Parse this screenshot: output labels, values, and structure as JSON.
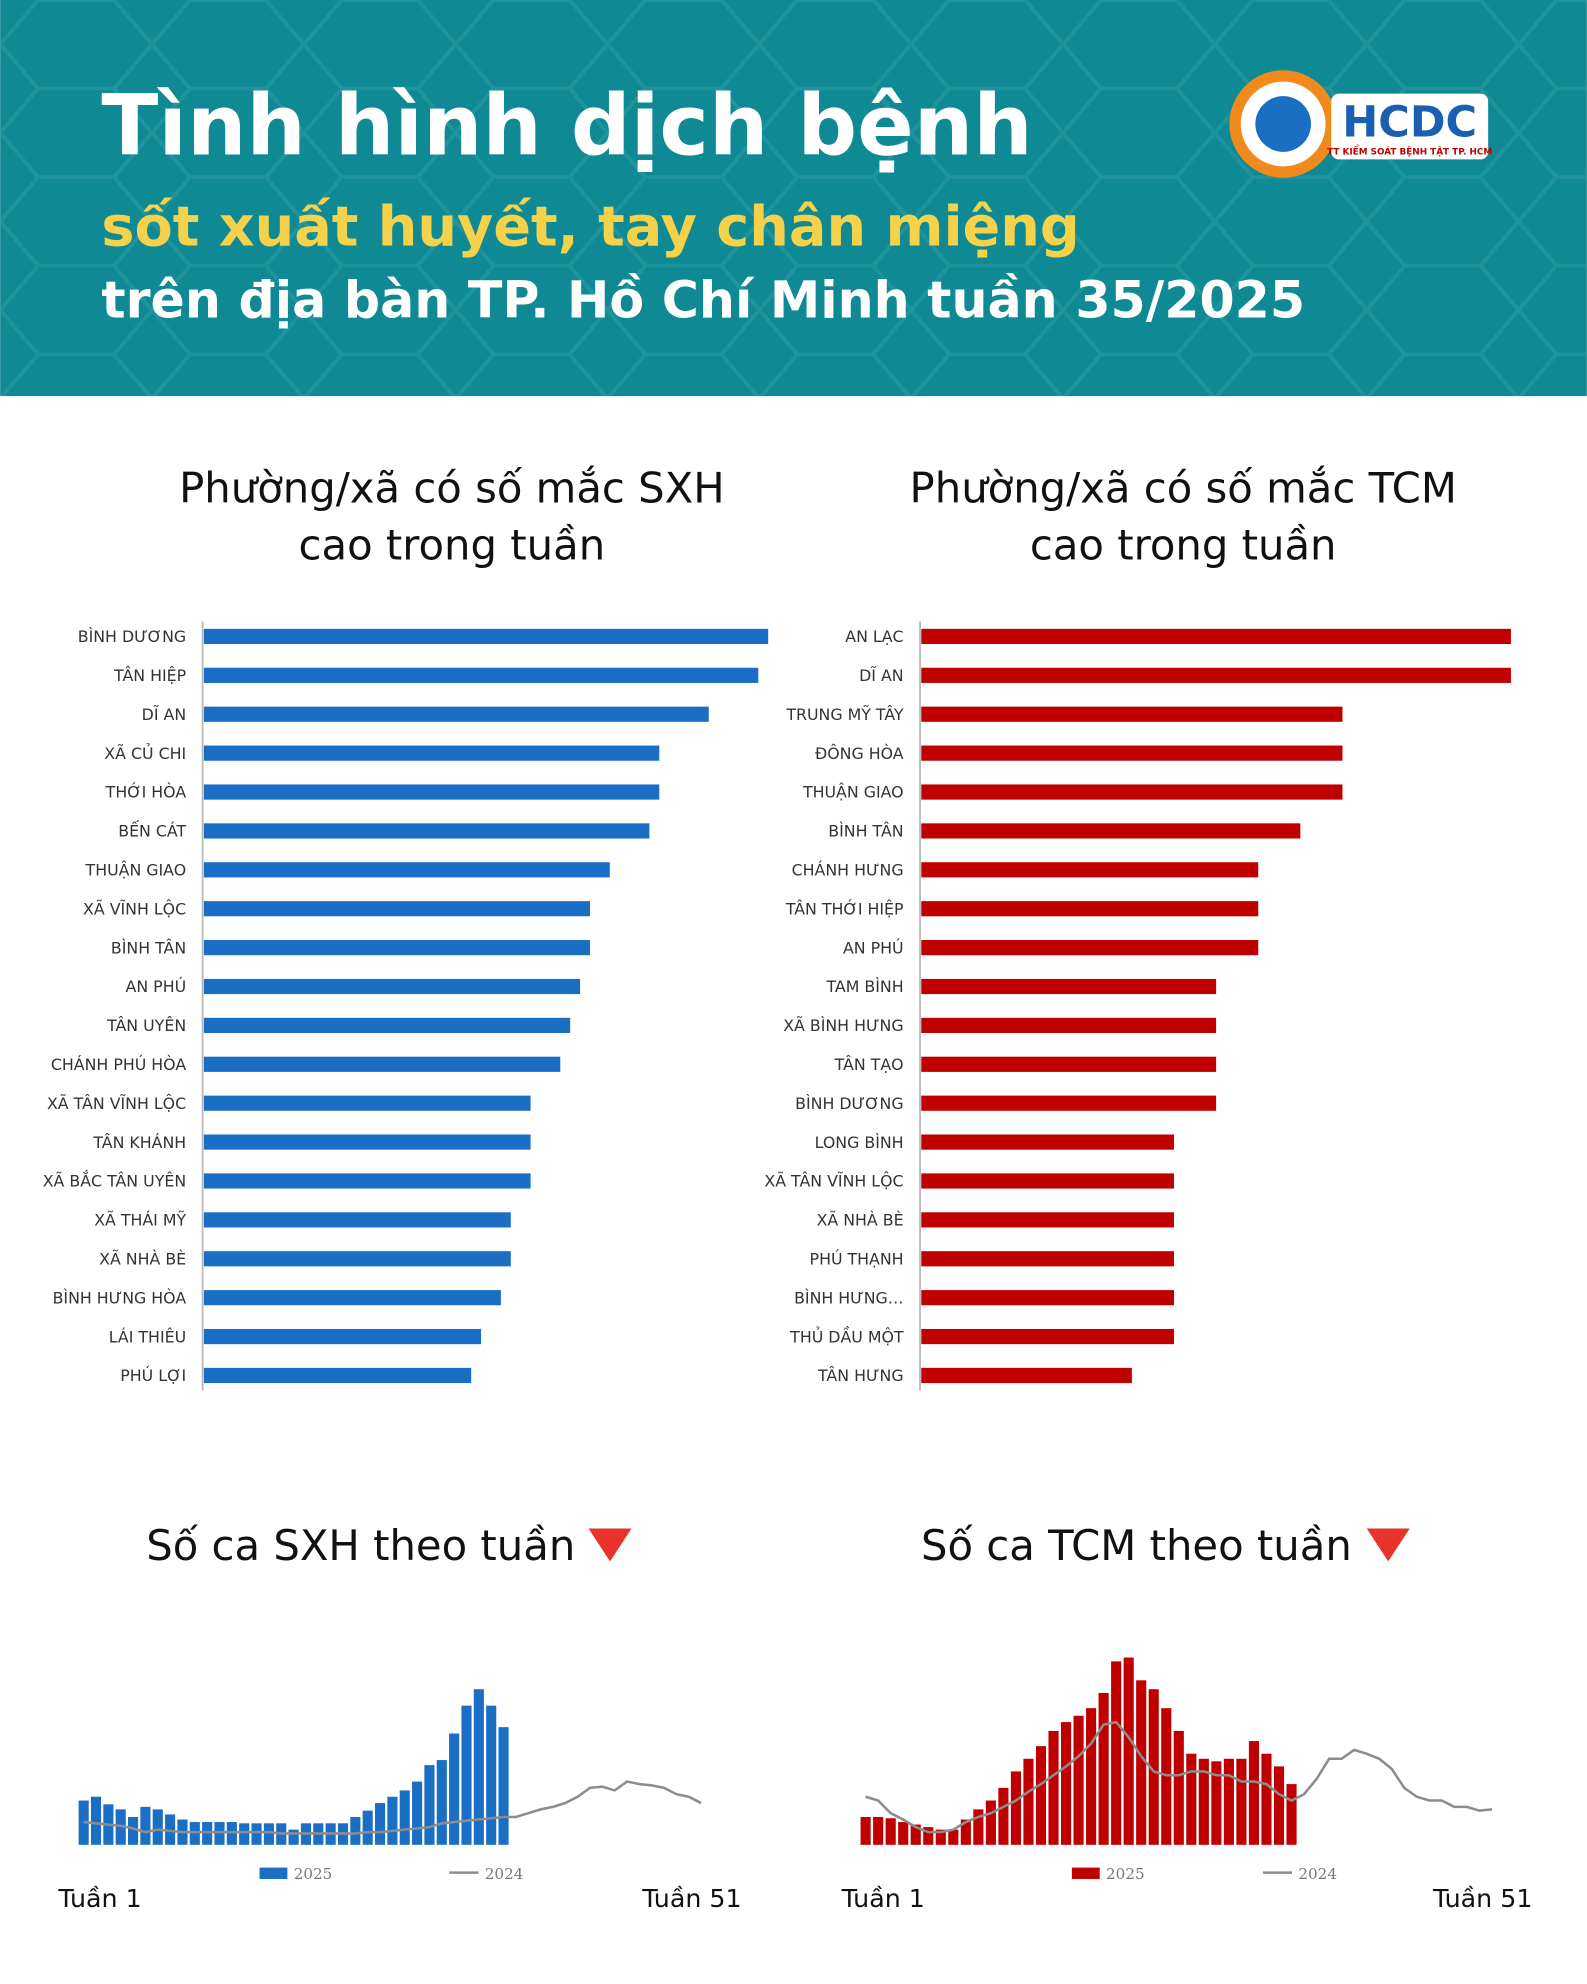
{
  "header": {
    "title": "Tình hình dịch bệnh",
    "subtitle": "sốt xuất huyết, tay chân miệng",
    "line3": "trên địa bàn TP. Hồ Chí Minh tuần 35/2025",
    "logo": {
      "name": "HCDC",
      "caption": "TT KIỂM SOÁT BỆNH TẬT TP. HCM"
    }
  },
  "chart_data": [
    {
      "type": "barh",
      "title": [
        "Phường/xã có số mắc SXH",
        "cao trong tuần"
      ],
      "color": "#1a6fc4",
      "categories": [
        "BÌNH DƯƠNG",
        "TÂN HIỆP",
        "DĨ AN",
        "XÃ CỦ CHI",
        "THỚI HÒA",
        "BẾN CÁT",
        "THUẬN GIAO",
        "XÃ VĨNH LỘC",
        "BÌNH TÂN",
        "AN PHÚ",
        "TÂN UYÊN",
        "CHÁNH PHÚ HÒA",
        "XÃ TÂN VĨNH LỘC",
        "TÂN KHÁNH",
        "XÃ BẮC TÂN UYÊN",
        "XÃ THÁI MỸ",
        "XÃ NHÀ BÈ",
        "BÌNH HƯNG HÒA",
        "LÁI THIÊU",
        "PHÚ LỢI"
      ],
      "values": [
        57,
        56,
        51,
        46,
        46,
        45,
        41,
        39,
        39,
        38,
        37,
        36,
        33,
        33,
        33,
        31,
        31,
        30,
        28,
        27
      ]
    },
    {
      "type": "barh",
      "title": [
        "Phường/xã có số mắc TCM",
        "cao trong tuần"
      ],
      "color": "#c00000",
      "categories": [
        "AN LẠC",
        "DĨ AN",
        "TRUNG MỸ TÂY",
        "ĐÔNG HÒA",
        "THUẬN GIAO",
        "BÌNH TÂN",
        "CHÁNH HƯNG",
        "TÂN THỚI HIỆP",
        "AN PHÚ",
        "TAM BÌNH",
        "XÃ BÌNH HƯNG",
        "TÂN TẠO",
        "BÌNH DƯƠNG",
        "LONG BÌNH",
        "XÃ TÂN VĨNH LỘC",
        "XÃ NHÀ BÈ",
        "PHÚ THẠNH",
        "BÌNH HƯNG…",
        "THỦ DẦU MỘT",
        "TÂN HƯNG"
      ],
      "values": [
        14,
        14,
        10,
        10,
        10,
        9,
        8,
        8,
        8,
        7,
        7,
        7,
        7,
        6,
        6,
        6,
        6,
        6,
        6,
        5
      ]
    },
    {
      "type": "combo",
      "title": "Số ca SXH theo tuần",
      "x_start_label": "Tuần 1",
      "x_end_label": "Tuần 51",
      "ylim": [
        0,
        150
      ],
      "x": [
        1,
        2,
        3,
        4,
        5,
        6,
        7,
        8,
        9,
        10,
        11,
        12,
        13,
        14,
        15,
        16,
        17,
        18,
        19,
        20,
        21,
        22,
        23,
        24,
        25,
        26,
        27,
        28,
        29,
        30,
        31,
        32,
        33,
        34,
        35,
        36,
        37,
        38,
        39,
        40,
        41,
        42,
        43,
        44,
        45,
        46,
        47,
        48,
        49,
        50,
        51
      ],
      "series": [
        {
          "name": "2025",
          "color": "#1a6fc4",
          "values": [
            35,
            38,
            32,
            28,
            22,
            30,
            28,
            24,
            20,
            18,
            18,
            18,
            18,
            17,
            17,
            17,
            17,
            12,
            17,
            17,
            17,
            17,
            22,
            27,
            33,
            38,
            43,
            50,
            63,
            67,
            88,
            110,
            123,
            110,
            93,
            null,
            null,
            null,
            null,
            null,
            null,
            null,
            null,
            null,
            null,
            null,
            null,
            null,
            null,
            null,
            null
          ]
        },
        {
          "name": "2024",
          "color": "#8c8c8c",
          "values": [
            18,
            17,
            16,
            15,
            13,
            10,
            12,
            11,
            10,
            10,
            10,
            10,
            10,
            10,
            10,
            10,
            9,
            9,
            9,
            9,
            9,
            9,
            9,
            10,
            10,
            11,
            12,
            13,
            14,
            17,
            18,
            19,
            20,
            21,
            22,
            22,
            25,
            28,
            30,
            33,
            38,
            45,
            46,
            43,
            50,
            48,
            47,
            45,
            40,
            38,
            33
          ]
        }
      ]
    },
    {
      "type": "combo",
      "title": "Số ca TCM theo tuần",
      "x_start_label": "Tuần 1",
      "x_end_label": "Tuần 51",
      "ylim": [
        0,
        150
      ],
      "x": [
        1,
        2,
        3,
        4,
        5,
        6,
        7,
        8,
        9,
        10,
        11,
        12,
        13,
        14,
        15,
        16,
        17,
        18,
        19,
        20,
        21,
        22,
        23,
        24,
        25,
        26,
        27,
        28,
        29,
        30,
        31,
        32,
        33,
        34,
        35,
        36,
        37,
        38,
        39,
        40,
        41,
        42,
        43,
        44,
        45,
        46,
        47,
        48,
        49,
        50,
        51
      ],
      "series": [
        {
          "name": "2025",
          "color": "#c00000",
          "values": [
            22,
            22,
            21,
            18,
            16,
            14,
            12,
            12,
            20,
            28,
            35,
            45,
            58,
            68,
            78,
            90,
            97,
            102,
            108,
            120,
            145,
            148,
            130,
            123,
            108,
            90,
            72,
            68,
            66,
            68,
            68,
            82,
            72,
            62,
            48,
            null,
            null,
            null,
            null,
            null,
            null,
            null,
            null,
            null,
            null,
            null,
            null,
            null,
            null,
            null,
            null
          ]
        },
        {
          "name": "2024",
          "color": "#8c8c8c",
          "values": [
            38,
            35,
            25,
            20,
            14,
            10,
            10,
            12,
            18,
            22,
            25,
            30,
            35,
            42,
            48,
            55,
            62,
            70,
            80,
            95,
            97,
            85,
            70,
            58,
            55,
            55,
            58,
            58,
            55,
            55,
            50,
            50,
            48,
            40,
            35,
            40,
            52,
            68,
            68,
            75,
            72,
            68,
            60,
            45,
            38,
            35,
            35,
            30,
            30,
            27,
            28
          ]
        }
      ]
    }
  ]
}
